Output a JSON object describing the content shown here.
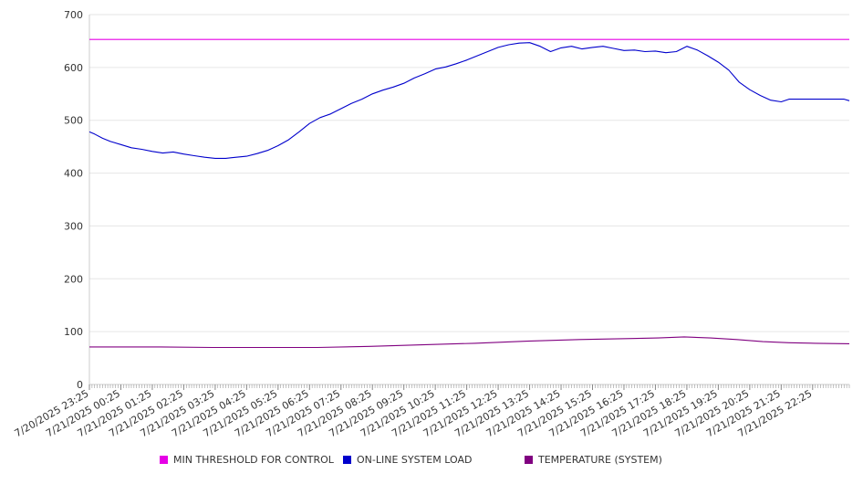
{
  "chart_data": {
    "type": "line",
    "xlabel": "",
    "ylabel": "",
    "ylim": [
      0,
      700
    ],
    "yticks": [
      0,
      100,
      200,
      300,
      400,
      500,
      600,
      700
    ],
    "grid": true,
    "legend_position": "bottom",
    "xlim_minutes": [
      -35,
      1415
    ],
    "x_tick_labels": [
      "7/20/2025 23:25",
      "7/21/2025 00:25",
      "7/21/2025 01:25",
      "7/21/2025 02:25",
      "7/21/2025 03:25",
      "7/21/2025 04:25",
      "7/21/2025 05:25",
      "7/21/2025 06:25",
      "7/21/2025 07:25",
      "7/21/2025 08:25",
      "7/21/2025 09:25",
      "7/21/2025 10:25",
      "7/21/2025 11:25",
      "7/21/2025 12:25",
      "7/21/2025 13:25",
      "7/21/2025 14:25",
      "7/21/2025 15:25",
      "7/21/2025 16:25",
      "7/21/2025 17:25",
      "7/21/2025 18:25",
      "7/21/2025 19:25",
      "7/21/2025 20:25",
      "7/21/2025 21:25",
      "7/21/2025 22:25"
    ],
    "series": [
      {
        "name": "MIN THRESHOLD FOR CONTROL",
        "color": "#e600e6",
        "x": [
          -35,
          1415
        ],
        "y": [
          653,
          653
        ]
      },
      {
        "name": "ON-LINE SYSTEM LOAD",
        "color": "#0000cc",
        "x": [
          -35,
          -25,
          -10,
          5,
          25,
          45,
          65,
          85,
          105,
          125,
          145,
          165,
          185,
          205,
          225,
          245,
          265,
          285,
          305,
          325,
          345,
          365,
          385,
          405,
          425,
          445,
          465,
          485,
          505,
          525,
          545,
          565,
          585,
          605,
          625,
          645,
          665,
          685,
          705,
          725,
          745,
          765,
          785,
          805,
          825,
          845,
          865,
          885,
          905,
          925,
          945,
          965,
          985,
          1005,
          1025,
          1045,
          1065,
          1085,
          1105,
          1125,
          1145,
          1165,
          1185,
          1205,
          1225,
          1245,
          1265,
          1285,
          1300,
          1315,
          1335,
          1355,
          1375,
          1395,
          1405,
          1415
        ],
        "y": [
          478,
          474,
          466,
          460,
          454,
          448,
          445,
          441,
          438,
          440,
          436,
          433,
          430,
          428,
          428,
          430,
          432,
          437,
          443,
          452,
          463,
          478,
          494,
          505,
          512,
          522,
          532,
          540,
          550,
          557,
          563,
          570,
          580,
          588,
          597,
          601,
          607,
          614,
          622,
          630,
          638,
          643,
          646,
          647,
          640,
          630,
          637,
          640,
          635,
          638,
          640,
          636,
          632,
          633,
          630,
          631,
          628,
          630,
          640,
          633,
          622,
          610,
          595,
          572,
          558,
          547,
          538,
          535,
          540,
          540,
          540,
          540,
          540,
          540,
          540,
          537
        ]
      },
      {
        "name": "TEMPERATURE (SYSTEM)",
        "color": "#800080",
        "x": [
          -35,
          0,
          100,
          200,
          300,
          400,
          500,
          600,
          700,
          800,
          900,
          1000,
          1050,
          1100,
          1150,
          1200,
          1250,
          1300,
          1350,
          1415
        ],
        "y": [
          71,
          71,
          71,
          70,
          70,
          70,
          72,
          75,
          78,
          82,
          85,
          87,
          88,
          90,
          88,
          85,
          81,
          79,
          78,
          77
        ]
      }
    ]
  }
}
